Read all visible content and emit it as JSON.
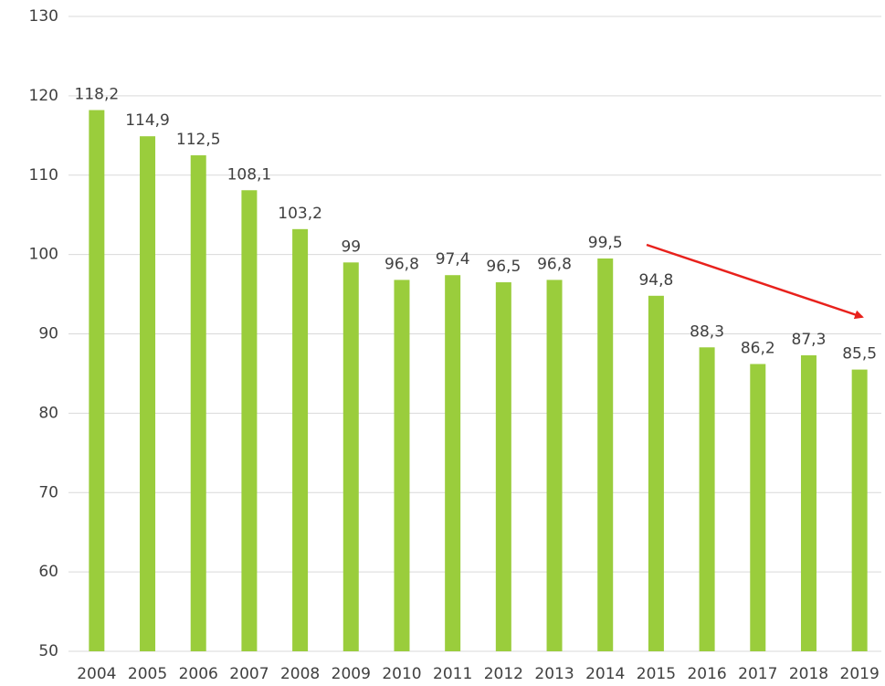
{
  "chart_data": {
    "type": "bar",
    "categories": [
      "2004",
      "2005",
      "2006",
      "2007",
      "2008",
      "2009",
      "2010",
      "2011",
      "2012",
      "2013",
      "2014",
      "2015",
      "2016",
      "2017",
      "2018",
      "2019"
    ],
    "values": [
      118.2,
      114.9,
      112.5,
      108.1,
      103.2,
      99,
      96.8,
      97.4,
      96.5,
      96.8,
      99.5,
      94.8,
      88.3,
      86.2,
      87.3,
      85.5
    ],
    "value_labels": [
      "118,2",
      "114,9",
      "112,5",
      "108,1",
      "103,2",
      "99",
      "96,8",
      "97,4",
      "96,5",
      "96,8",
      "99,5",
      "94,8",
      "88,3",
      "86,2",
      "87,3",
      "85,5"
    ],
    "color": "#9acd3c",
    "ylim": [
      50,
      130
    ],
    "yticks": [
      50,
      60,
      70,
      80,
      90,
      100,
      110,
      120,
      130
    ],
    "grid": true
  }
}
